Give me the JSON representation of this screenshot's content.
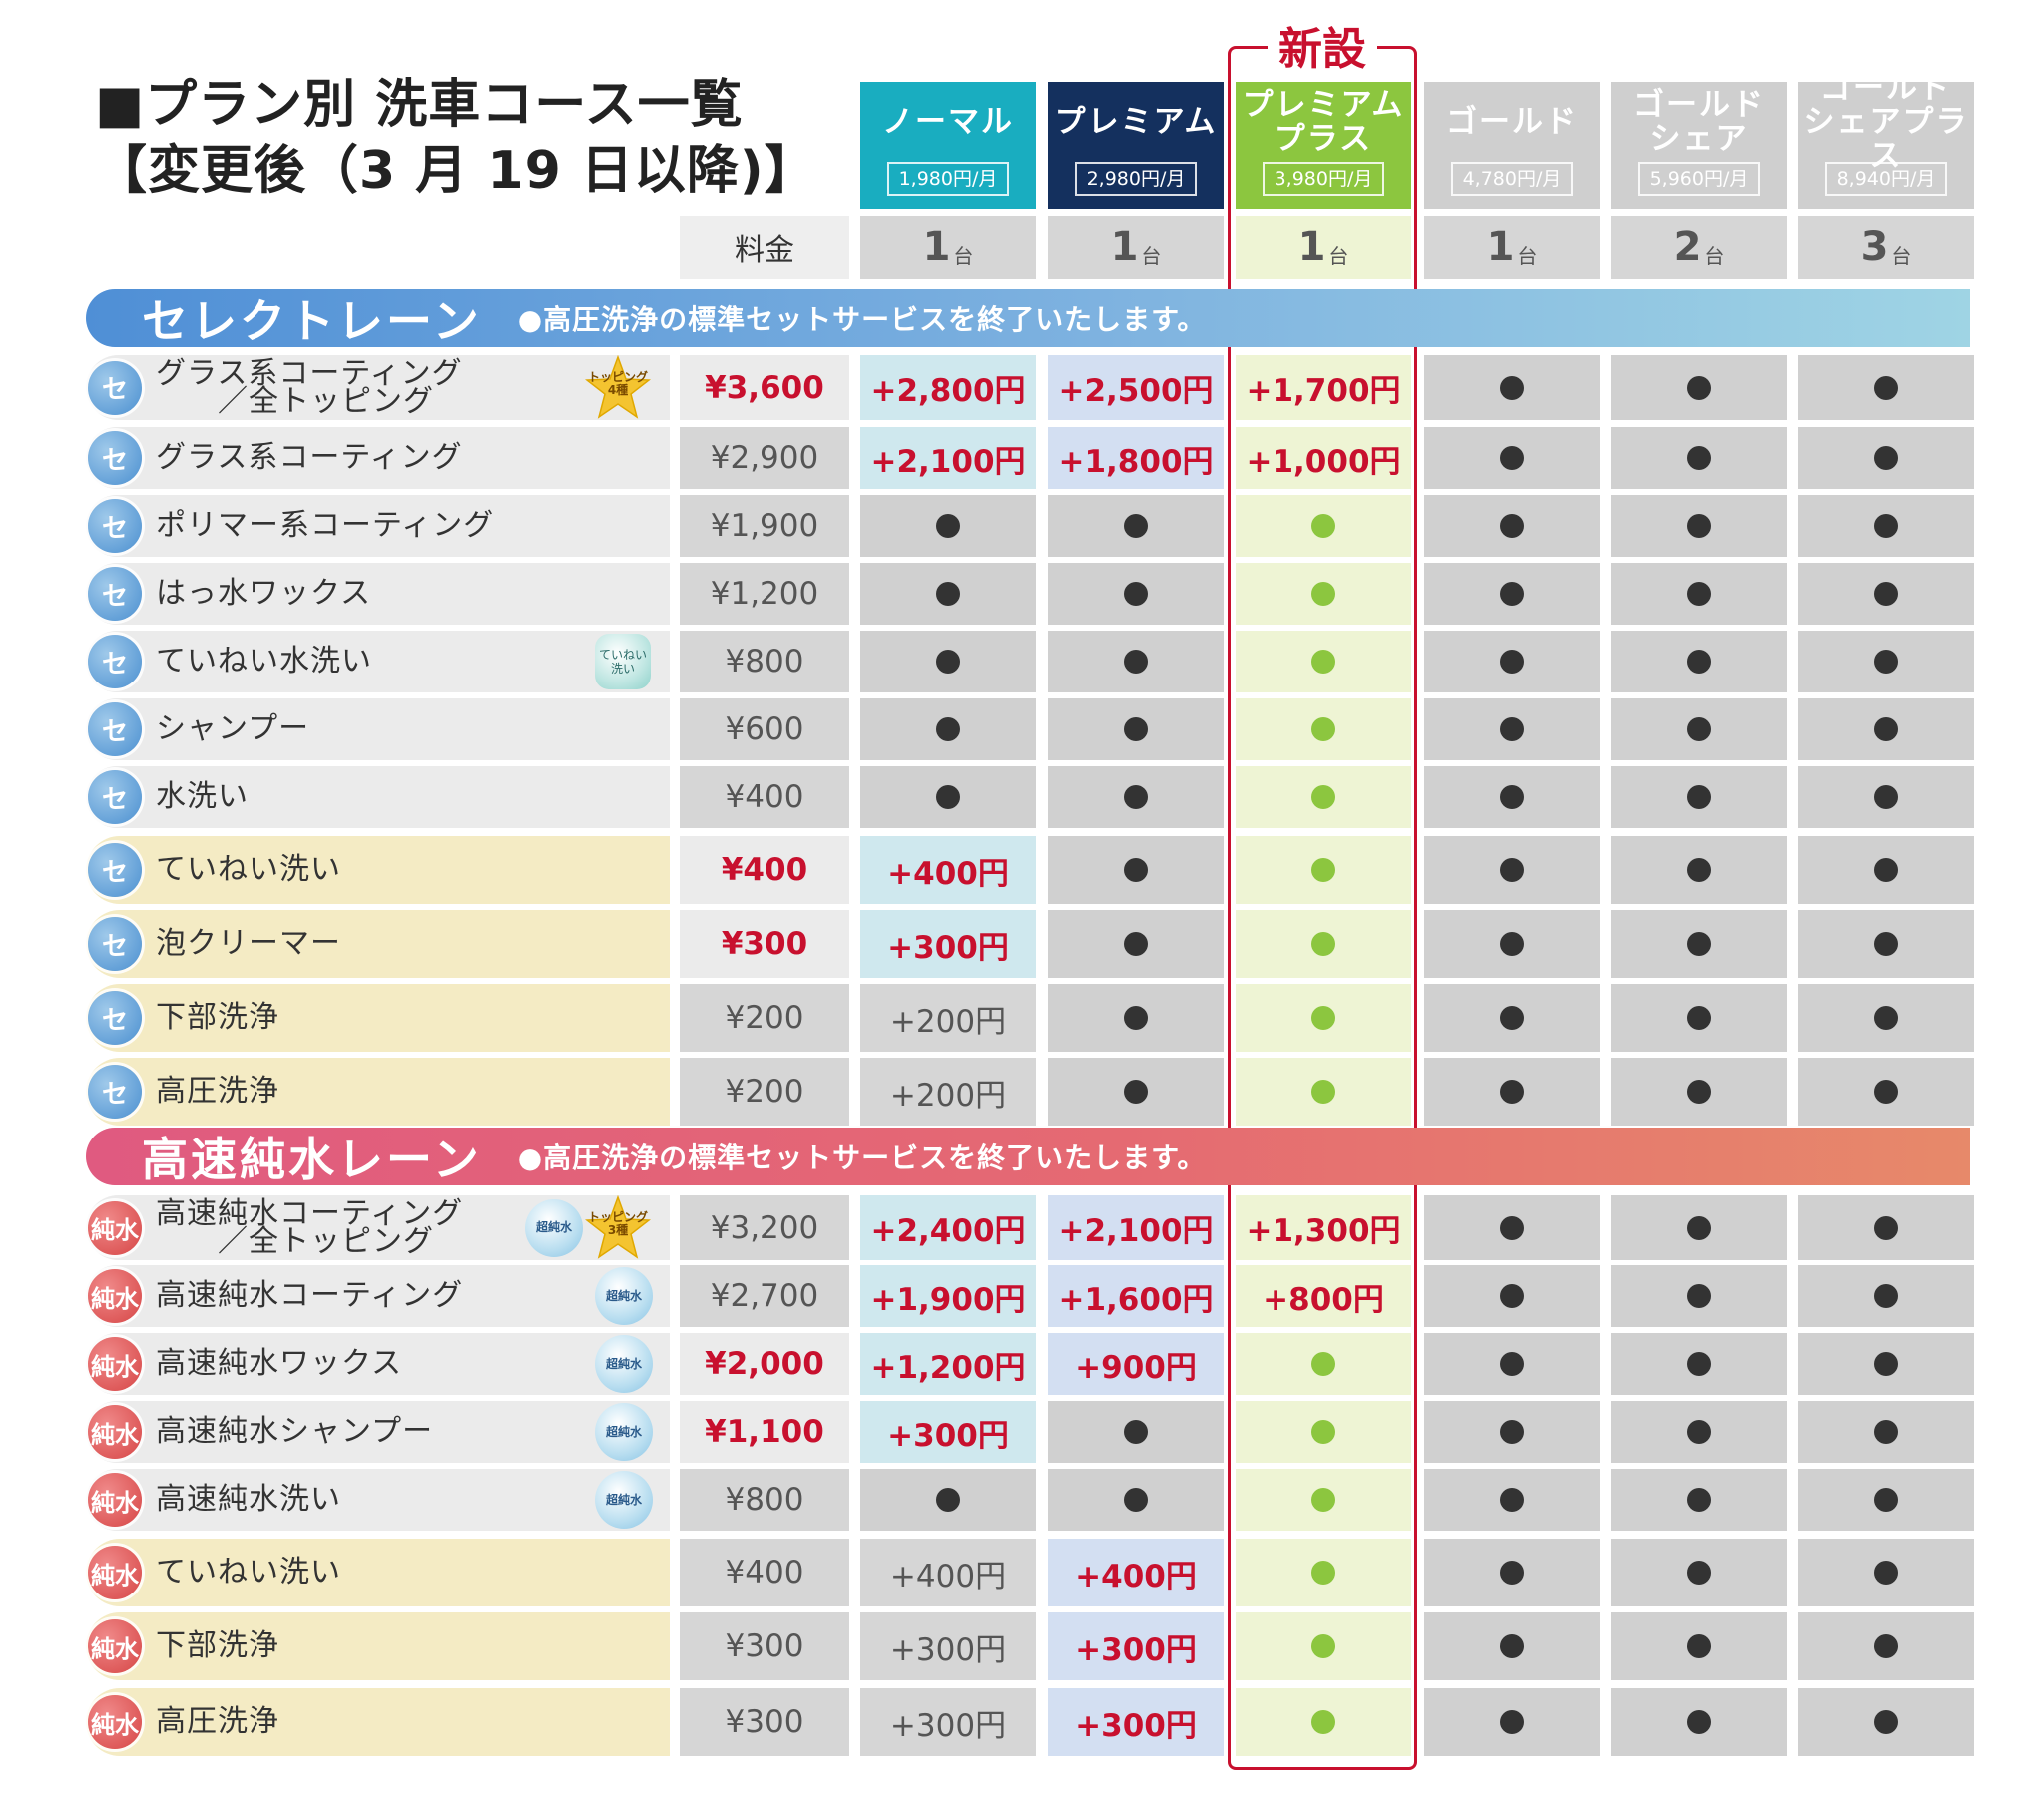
{
  "title": {
    "line1": "■プラン別 洗車コース一覧",
    "line2": "【変更後（3 月 19 日以降)】"
  },
  "new_label": "新設",
  "fee_header": "料金",
  "plans": [
    {
      "name": "ノーマル",
      "price": "1,980円/月",
      "units": "1",
      "unit_suffix": "台",
      "color": "#19adc0"
    },
    {
      "name": "プレミアム",
      "price": "2,980円/月",
      "units": "1",
      "unit_suffix": "台",
      "color": "#14305e"
    },
    {
      "name": "プレミアム\nプラス",
      "price": "3,980円/月",
      "units": "1",
      "unit_suffix": "台",
      "color": "#8cc63f"
    },
    {
      "name": "ゴールド",
      "price": "4,780円/月",
      "units": "1",
      "unit_suffix": "台",
      "color": "#cfcfcf"
    },
    {
      "name": "ゴールド\nシェア",
      "price": "5,960円/月",
      "units": "2",
      "unit_suffix": "台",
      "color": "#cfcfcf"
    },
    {
      "name": "ゴールド\nシェアプラス",
      "price": "8,940円/月",
      "units": "3",
      "unit_suffix": "台",
      "color": "#cfcfcf"
    }
  ],
  "lanes": [
    {
      "name": "セレクトレーン",
      "note": "●高圧洗浄の標準セットサービスを終了いたします。",
      "badge": "セ",
      "rows": [
        {
          "name": "グラス系コーティング\n　　／全トッピング",
          "icon": "star",
          "icon_text": "トッピング\n4種",
          "price": "¥3,600",
          "price_red": true,
          "row_color": "#ebebeb",
          "cells": [
            "+2,800円",
            "+2,500円",
            "+1,700円",
            "dot",
            "dot",
            "dot"
          ],
          "cells_red": [
            true,
            true,
            true,
            false,
            false,
            false
          ]
        },
        {
          "name": "グラス系コーティング",
          "icon": "",
          "icon_text": "",
          "price": "¥2,900",
          "price_red": false,
          "row_color": "#ebebeb",
          "cells": [
            "+2,100円",
            "+1,800円",
            "+1,000円",
            "dot",
            "dot",
            "dot"
          ],
          "cells_red": [
            true,
            true,
            true,
            false,
            false,
            false
          ]
        },
        {
          "name": "ポリマー系コーティング",
          "icon": "",
          "icon_text": "",
          "price": "¥1,900",
          "price_red": false,
          "row_color": "#ebebeb",
          "cells": [
            "dot",
            "dot",
            "dot",
            "dot",
            "dot",
            "dot"
          ],
          "cells_red": [
            false,
            false,
            false,
            false,
            false,
            false
          ]
        },
        {
          "name": "はっ水ワックス",
          "icon": "",
          "icon_text": "",
          "price": "¥1,200",
          "price_red": false,
          "row_color": "#ebebeb",
          "cells": [
            "dot",
            "dot",
            "dot",
            "dot",
            "dot",
            "dot"
          ],
          "cells_red": [
            false,
            false,
            false,
            false,
            false,
            false
          ]
        },
        {
          "name": "ていねい水洗い",
          "icon": "teinei",
          "icon_text": "ていねい\n洗い",
          "price": "¥800",
          "price_red": false,
          "row_color": "#ebebeb",
          "cells": [
            "dot",
            "dot",
            "dot",
            "dot",
            "dot",
            "dot"
          ],
          "cells_red": [
            false,
            false,
            false,
            false,
            false,
            false
          ]
        },
        {
          "name": "シャンプー",
          "icon": "",
          "icon_text": "",
          "price": "¥600",
          "price_red": false,
          "row_color": "#ebebeb",
          "cells": [
            "dot",
            "dot",
            "dot",
            "dot",
            "dot",
            "dot"
          ],
          "cells_red": [
            false,
            false,
            false,
            false,
            false,
            false
          ]
        },
        {
          "name": "水洗い",
          "icon": "",
          "icon_text": "",
          "price": "¥400",
          "price_red": false,
          "row_color": "#ebebeb",
          "cells": [
            "dot",
            "dot",
            "dot",
            "dot",
            "dot",
            "dot"
          ],
          "cells_red": [
            false,
            false,
            false,
            false,
            false,
            false
          ]
        },
        {
          "name": "ていねい洗い",
          "icon": "",
          "icon_text": "",
          "price": "¥400",
          "price_red": true,
          "row_color": "#f4ebc4",
          "cells": [
            "+400円",
            "dot",
            "dot",
            "dot",
            "dot",
            "dot"
          ],
          "cells_red": [
            true,
            false,
            false,
            false,
            false,
            false
          ]
        },
        {
          "name": "泡クリーマー",
          "icon": "",
          "icon_text": "",
          "price": "¥300",
          "price_red": true,
          "row_color": "#f4ebc4",
          "cells": [
            "+300円",
            "dot",
            "dot",
            "dot",
            "dot",
            "dot"
          ],
          "cells_red": [
            true,
            false,
            false,
            false,
            false,
            false
          ]
        },
        {
          "name": "下部洗浄",
          "icon": "",
          "icon_text": "",
          "price": "¥200",
          "price_red": false,
          "row_color": "#f4ebc4",
          "cells": [
            "+200円",
            "dot",
            "dot",
            "dot",
            "dot",
            "dot"
          ],
          "cells_red": [
            false,
            false,
            false,
            false,
            false,
            false
          ]
        },
        {
          "name": "高圧洗浄",
          "icon": "",
          "icon_text": "",
          "price": "¥200",
          "price_red": false,
          "row_color": "#f4ebc4",
          "cells": [
            "+200円",
            "dot",
            "dot",
            "dot",
            "dot",
            "dot"
          ],
          "cells_red": [
            false,
            false,
            false,
            false,
            false,
            false
          ]
        }
      ]
    },
    {
      "name": "高速純水レーン",
      "note": "●高圧洗浄の標準セットサービスを終了いたします。",
      "badge": "純水",
      "rows": [
        {
          "name": "高速純水コーティング\n　　／全トッピング",
          "icon": "bubble-star",
          "icon_text": "超純水",
          "star_text": "トッピング\n3種",
          "price": "¥3,200",
          "price_red": false,
          "row_color": "#ebebeb",
          "cells": [
            "+2,400円",
            "+2,100円",
            "+1,300円",
            "dot",
            "dot",
            "dot"
          ],
          "cells_red": [
            true,
            true,
            true,
            false,
            false,
            false
          ]
        },
        {
          "name": "高速純水コーティング",
          "icon": "bubble",
          "icon_text": "超純水",
          "price": "¥2,700",
          "price_red": false,
          "row_color": "#ebebeb",
          "cells": [
            "+1,900円",
            "+1,600円",
            "+800円",
            "dot",
            "dot",
            "dot"
          ],
          "cells_red": [
            true,
            true,
            true,
            false,
            false,
            false
          ]
        },
        {
          "name": "高速純水ワックス",
          "icon": "bubble",
          "icon_text": "超純水",
          "price": "¥2,000",
          "price_red": true,
          "row_color": "#ebebeb",
          "cells": [
            "+1,200円",
            "+900円",
            "dot",
            "dot",
            "dot",
            "dot"
          ],
          "cells_red": [
            true,
            true,
            false,
            false,
            false,
            false
          ]
        },
        {
          "name": "高速純水シャンプー",
          "icon": "bubble",
          "icon_text": "超純水",
          "price": "¥1,100",
          "price_red": true,
          "row_color": "#ebebeb",
          "cells": [
            "+300円",
            "dot",
            "dot",
            "dot",
            "dot",
            "dot"
          ],
          "cells_red": [
            true,
            false,
            false,
            false,
            false,
            false
          ]
        },
        {
          "name": "高速純水洗い",
          "icon": "bubble",
          "icon_text": "超純水",
          "price": "¥800",
          "price_red": false,
          "row_color": "#ebebeb",
          "cells": [
            "dot",
            "dot",
            "dot",
            "dot",
            "dot",
            "dot"
          ],
          "cells_red": [
            false,
            false,
            false,
            false,
            false,
            false
          ]
        },
        {
          "name": "ていねい洗い",
          "icon": "",
          "icon_text": "",
          "price": "¥400",
          "price_red": false,
          "row_color": "#f4ebc4",
          "cells": [
            "+400円",
            "+400円",
            "dot",
            "dot",
            "dot",
            "dot"
          ],
          "cells_red": [
            false,
            true,
            false,
            false,
            false,
            false
          ]
        },
        {
          "name": "下部洗浄",
          "icon": "",
          "icon_text": "",
          "price": "¥300",
          "price_red": false,
          "row_color": "#f4ebc4",
          "cells": [
            "+300円",
            "+300円",
            "dot",
            "dot",
            "dot",
            "dot"
          ],
          "cells_red": [
            false,
            true,
            false,
            false,
            false,
            false
          ]
        },
        {
          "name": "高圧洗浄",
          "icon": "",
          "icon_text": "",
          "price": "¥300",
          "price_red": false,
          "row_color": "#f4ebc4",
          "cells": [
            "+300円",
            "+300円",
            "dot",
            "dot",
            "dot",
            "dot"
          ],
          "cells_red": [
            false,
            true,
            false,
            false,
            false,
            false
          ]
        }
      ]
    }
  ],
  "colors": {
    "accent_red": "#c8102e",
    "select_lane": "#5b9bd8",
    "pure_lane": "#e2607a",
    "normal_cell": "#cfe8ee",
    "premium_cell": "#d3dff2",
    "plus_cell": "#eef4d4",
    "gold_cell": "#d0d0d0",
    "fee_cell": "#d6d6d6"
  }
}
